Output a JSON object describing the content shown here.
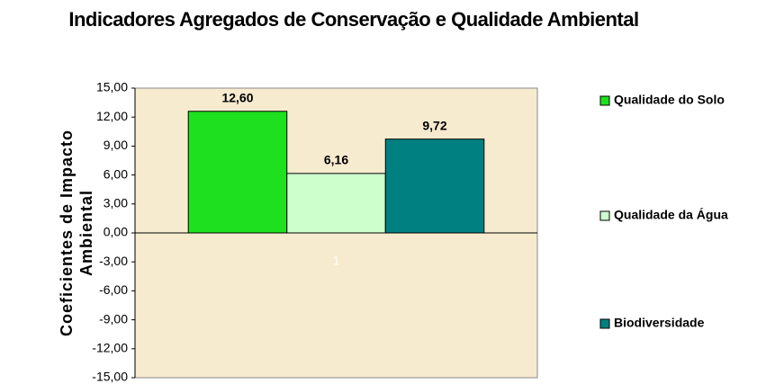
{
  "chart_data": {
    "type": "bar",
    "title": "Indicadores Agregados de Conservação e Qualidade Ambiental",
    "ylabel": "Coeficientes de Impacto Ambiental",
    "categories": [
      "1"
    ],
    "series": [
      {
        "name": "Qualidade do Solo",
        "color": "#1fe01f",
        "values": [
          12.6
        ],
        "value_labels": [
          "12,60"
        ]
      },
      {
        "name": "Qualidade da Água",
        "color": "#ccffcc",
        "values": [
          6.16
        ],
        "value_labels": [
          "6,16"
        ]
      },
      {
        "name": "Biodiversidade",
        "color": "#008080",
        "values": [
          9.72
        ],
        "value_labels": [
          "9,72"
        ]
      }
    ],
    "ylim": [
      -15,
      15
    ],
    "yticks": [
      {
        "value": 15,
        "label": "15,00"
      },
      {
        "value": 12,
        "label": "12,00"
      },
      {
        "value": 9,
        "label": "9,00"
      },
      {
        "value": 6,
        "label": "6,00"
      },
      {
        "value": 3,
        "label": "3,00"
      },
      {
        "value": 0,
        "label": "0,00"
      },
      {
        "value": -3,
        "label": "-3,00"
      },
      {
        "value": -6,
        "label": "-6,00"
      },
      {
        "value": -9,
        "label": "-9,00"
      },
      {
        "value": -12,
        "label": "-12,00"
      },
      {
        "value": -15,
        "label": "-15,00"
      }
    ],
    "legend": "right",
    "plot_background": "#f7ebcf"
  }
}
